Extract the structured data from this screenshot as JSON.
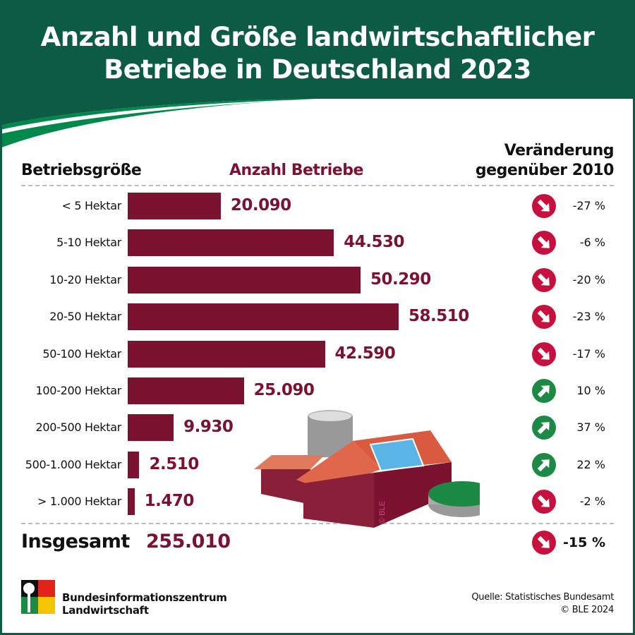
{
  "title_line1": "Anzahl und Größe landwirtschaftlicher",
  "title_line2": "Betriebe in Deutschland 2023",
  "colors": {
    "header": "#0b5b45",
    "accent_green": "#00894a",
    "bar": "#7a1230",
    "down": "#c8103e",
    "up": "#1c8a45"
  },
  "chart_data": {
    "type": "bar",
    "orientation": "horizontal",
    "xlabel": "Anzahl Betriebe",
    "ylabel": "Betriebsgröße",
    "change_header_line1": "Veränderung",
    "change_header_line2": "gegenüber 2010",
    "categories": [
      "< 5 Hektar",
      "5-10 Hektar",
      "10-20 Hektar",
      "20-50 Hektar",
      "50-100 Hektar",
      "100-200 Hektar",
      "200-500 Hektar",
      "500-1.000 Hektar",
      "> 1.000 Hektar"
    ],
    "values": [
      20090,
      44530,
      50290,
      58510,
      42590,
      25090,
      9930,
      2510,
      1470
    ],
    "value_labels": [
      "20.090",
      "44.530",
      "50.290",
      "58.510",
      "42.590",
      "25.090",
      "9.930",
      "2.510",
      "1.470"
    ],
    "change_labels": [
      "-27 %",
      "-6 %",
      "-20 %",
      "-23 %",
      "-17 %",
      "10 %",
      "37 %",
      "22 %",
      "-2 %"
    ],
    "change_direction": [
      "down",
      "down",
      "down",
      "down",
      "down",
      "up",
      "up",
      "up",
      "down"
    ],
    "total_label": "Insgesamt",
    "total_value": "255.010",
    "total_change": "-15 %",
    "total_direction": "down"
  },
  "footer": {
    "org_line1": "Bundesinformationszentrum",
    "org_line2": "Landwirtschaft",
    "source": "Quelle: Statistisches Bundesamt",
    "copyright": "© BLE 2024"
  },
  "watermark": "© BLE"
}
